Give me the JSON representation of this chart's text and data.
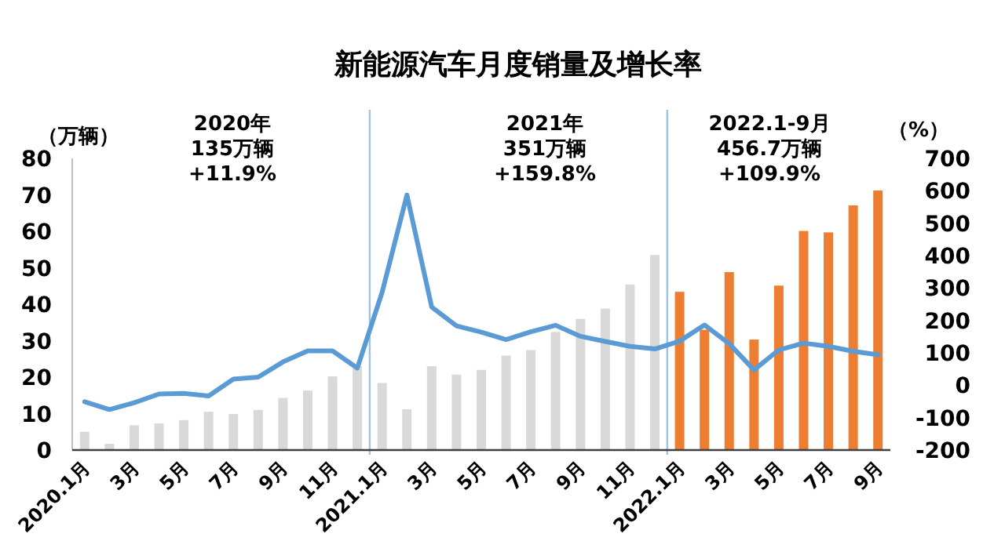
{
  "chart_data": {
    "type": "bar",
    "title": "新能源汽车月度销量及增长率",
    "ylabel": "（万辆）",
    "y2label": "（%）",
    "categories": [
      "2020.1月",
      null,
      "3月",
      null,
      "5月",
      null,
      "7月",
      null,
      "9月",
      null,
      "11月",
      null,
      "2021.1月",
      null,
      "3月",
      null,
      "5月",
      null,
      "7月",
      null,
      "9月",
      null,
      "11月",
      null,
      "2022.1月",
      null,
      "3月",
      null,
      "5月",
      null,
      "7月",
      null,
      "9月"
    ],
    "series": [
      {
        "colors": [
          "#d9d9d9",
          "#d9d9d9",
          "#d9d9d9",
          "#d9d9d9",
          "#d9d9d9",
          "#d9d9d9",
          "#d9d9d9",
          "#d9d9d9",
          "#d9d9d9",
          "#d9d9d9",
          "#d9d9d9",
          "#d9d9d9",
          "#d9d9d9",
          "#d9d9d9",
          "#d9d9d9",
          "#d9d9d9",
          "#d9d9d9",
          "#d9d9d9",
          "#d9d9d9",
          "#d9d9d9",
          "#d9d9d9",
          "#d9d9d9",
          "#d9d9d9",
          "#d9d9d9",
          "#ed7d31",
          "#ed7d31",
          "#ed7d31",
          "#ed7d31",
          "#ed7d31",
          "#ed7d31",
          "#ed7d31",
          "#ed7d31",
          "#ed7d31"
        ],
        "values": [
          5.0,
          1.7,
          6.8,
          7.3,
          8.2,
          10.5,
          9.9,
          11.0,
          14.3,
          16.3,
          20.2,
          23.0,
          18.4,
          11.2,
          23.0,
          20.7,
          22.0,
          25.9,
          27.4,
          32.4,
          36.0,
          38.8,
          45.4,
          53.5,
          43.4,
          33.0,
          48.8,
          30.3,
          45.1,
          60.1,
          59.7,
          67.1,
          71.2
        ]
      },
      {
        "type": "line",
        "axis": "y2",
        "color": "#5b9bd5",
        "values": [
          -51,
          -75,
          -54,
          -27,
          -25,
          -33,
          19,
          25,
          72,
          106,
          106,
          53,
          287,
          587,
          241,
          183,
          164,
          141,
          165,
          185,
          151,
          135,
          120,
          112,
          136,
          186,
          128,
          47,
          109,
          130,
          120,
          105,
          94
        ]
      }
    ],
    "ylim": [
      0,
      80
    ],
    "yticks": [
      0,
      10,
      20,
      30,
      40,
      50,
      60,
      70,
      80
    ],
    "y2lim": [
      -200,
      700
    ],
    "y2ticks": [
      -200,
      -100,
      0,
      100,
      200,
      300,
      400,
      500,
      600,
      700
    ],
    "annotations": [
      "2020年\n135万辆\n+11.9%",
      "2021年\n351万辆\n+159.8%",
      "2022.1-9月\n456.7万辆\n+109.9%"
    ],
    "grid": false,
    "marker": "none",
    "line_style": "solid"
  }
}
